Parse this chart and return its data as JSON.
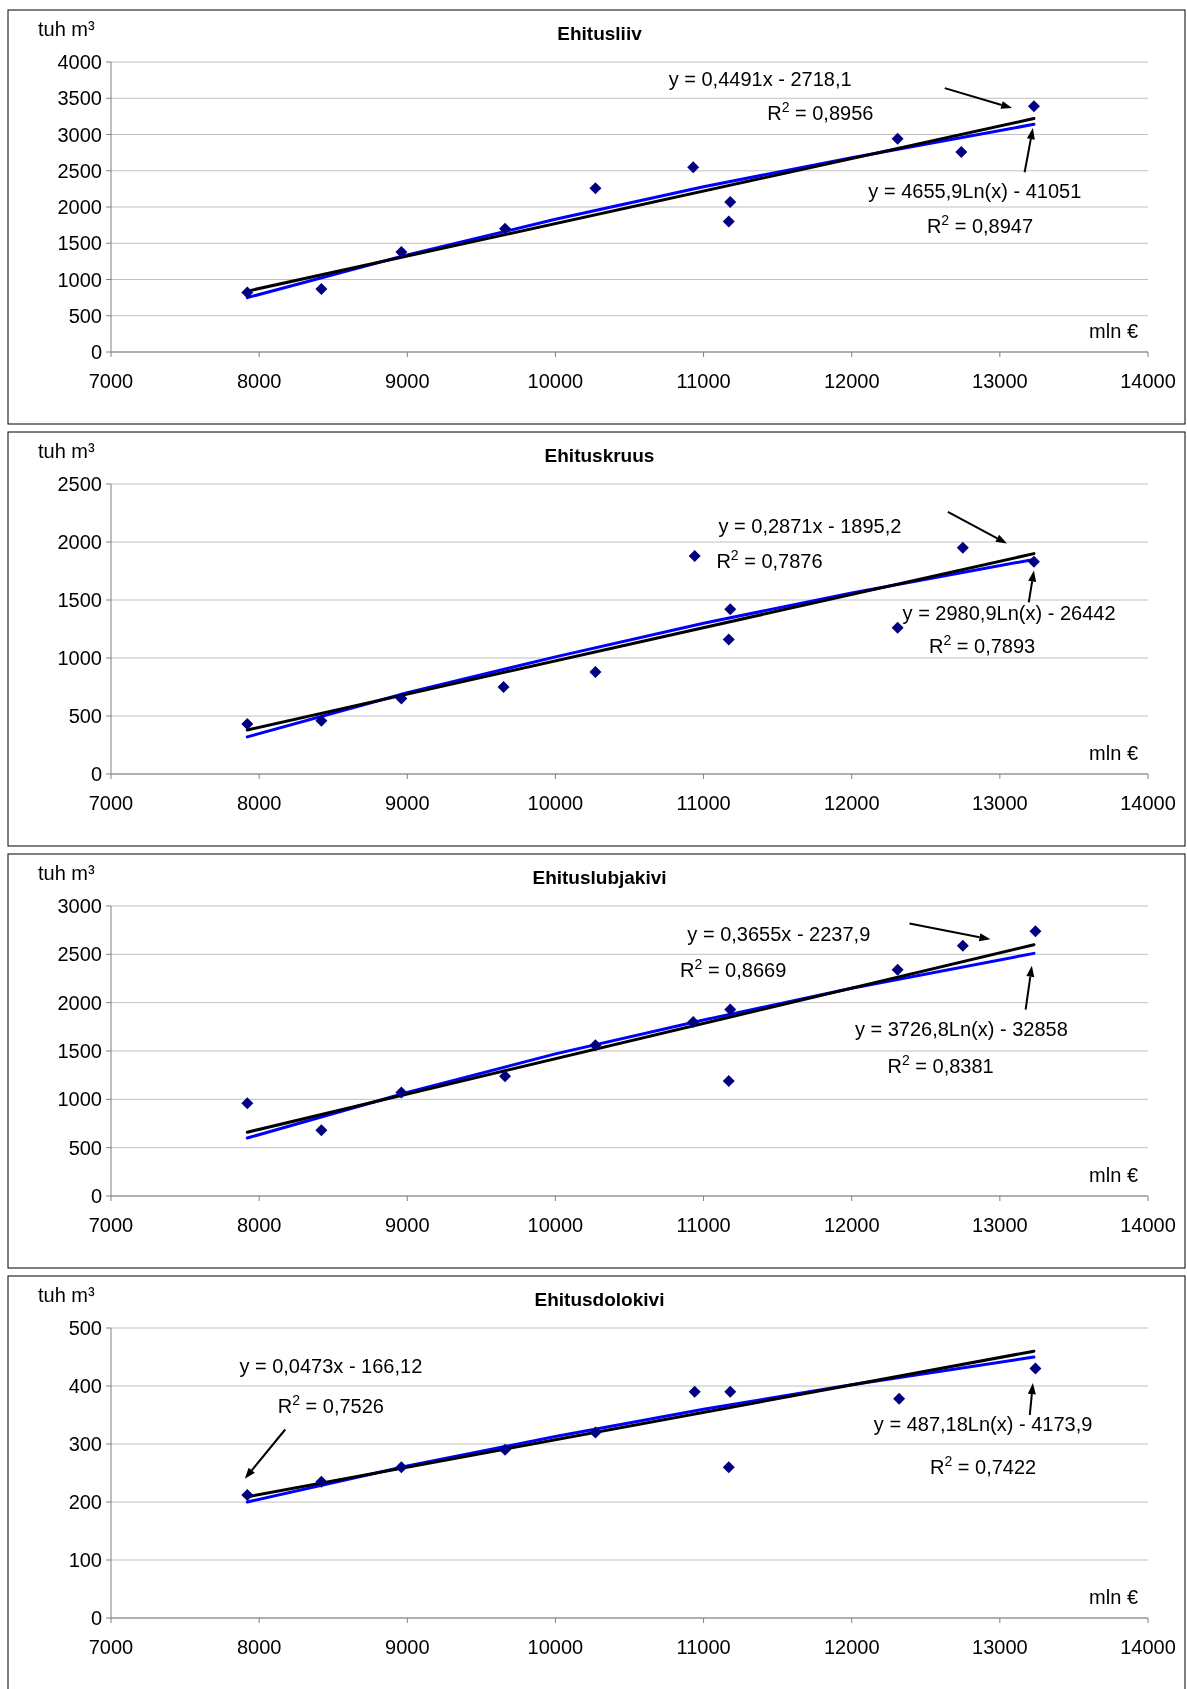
{
  "chart_data": [
    {
      "type": "scatter",
      "title": "Ehitusliiv",
      "ylabel": "tuh m³",
      "xlabel": "mln €",
      "xlim": [
        7000,
        14000
      ],
      "xticks": [
        7000,
        8000,
        9000,
        10000,
        11000,
        12000,
        13000,
        14000
      ],
      "ylim": [
        0,
        4000
      ],
      "yticks": [
        0,
        500,
        1000,
        1500,
        2000,
        2500,
        3000,
        3500,
        4000
      ],
      "grid": "y",
      "marker": "diamond",
      "annotations": [
        "y = 0,4491x - 2718,1",
        "R$^{2}$ = 0,8956",
        "y = 4655,9Ln(x) - 41051",
        "R$^{2}$ = 0,8947"
      ],
      "series": [
        {
          "type": "line",
          "color": "#0000ff",
          "marker": "none",
          "x": [
            7920,
            9000,
            10000,
            11000,
            12000,
            13230
          ],
          "values": [
            750,
            1340,
            1830,
            2280,
            2680,
            3140
          ]
        },
        {
          "type": "line",
          "color": "#000000",
          "marker": "none",
          "x": [
            7920,
            13230
          ],
          "values": [
            840,
            3220
          ]
        },
        {
          "color": "#000080",
          "x": [
            7920,
            8420,
            8960,
            9660,
            10270,
            10930,
            11170,
            11180,
            12310,
            12740,
            13230
          ],
          "values": [
            820,
            870,
            1380,
            1700,
            2260,
            2550,
            1800,
            2070,
            2940,
            2760,
            3390
          ]
        }
      ]
    },
    {
      "type": "scatter",
      "title": "Ehituskruus",
      "ylabel": "tuh m³",
      "xlabel": "mln €",
      "xlim": [
        7000,
        14000
      ],
      "xticks": [
        7000,
        8000,
        9000,
        10000,
        11000,
        12000,
        13000,
        14000
      ],
      "ylim": [
        0,
        2500
      ],
      "yticks": [
        0,
        500,
        1000,
        1500,
        2000,
        2500
      ],
      "grid": "y",
      "marker": "diamond",
      "annotations": [
        "y = 0,2871x - 1895,2",
        "R$^{2}$ = 0,7876",
        "y = 2980,9Ln(x) - 26442",
        "R$^{2}$ = 0,7893"
      ],
      "series": [
        {
          "type": "line",
          "color": "#0000ff",
          "marker": "none",
          "x": [
            7920,
            9000,
            10000,
            11000,
            12000,
            13230
          ],
          "values": [
            320,
            700,
            1010,
            1300,
            1560,
            1850
          ]
        },
        {
          "type": "line",
          "color": "#000000",
          "marker": "none",
          "x": [
            7920,
            13230
          ],
          "values": [
            380,
            1900
          ]
        },
        {
          "color": "#000080",
          "x": [
            7920,
            8420,
            8960,
            9650,
            10270,
            10940,
            11170,
            11180,
            12310,
            12750,
            13230
          ],
          "values": [
            430,
            460,
            650,
            750,
            880,
            1880,
            1160,
            1420,
            1260,
            1950,
            1830
          ]
        }
      ]
    },
    {
      "type": "scatter",
      "title": "Ehituslubjakivi",
      "ylabel": "tuh m³",
      "xlabel": "mln €",
      "xlim": [
        7000,
        14000
      ],
      "xticks": [
        7000,
        8000,
        9000,
        10000,
        11000,
        12000,
        13000,
        14000
      ],
      "ylim": [
        0,
        3000
      ],
      "yticks": [
        0,
        500,
        1000,
        1500,
        2000,
        2500,
        3000
      ],
      "grid": "y",
      "marker": "diamond",
      "annotations": [
        "y = 0,3655x - 2237,9",
        "R$^{2}$ = 0,8669",
        "y = 3726,8Ln(x) - 32858",
        "R$^{2}$ = 0,8381"
      ],
      "series": [
        {
          "type": "line",
          "color": "#0000ff",
          "marker": "none",
          "x": [
            7920,
            9000,
            10000,
            11000,
            12000,
            13230
          ],
          "values": [
            600,
            1070,
            1470,
            1820,
            2150,
            2510
          ]
        },
        {
          "type": "line",
          "color": "#000000",
          "marker": "none",
          "x": [
            7920,
            13230
          ],
          "values": [
            660,
            2600
          ]
        },
        {
          "color": "#000080",
          "x": [
            7920,
            8420,
            8960,
            9660,
            10270,
            10930,
            11170,
            11180,
            12310,
            12750,
            13240
          ],
          "values": [
            960,
            680,
            1070,
            1240,
            1560,
            1800,
            1190,
            1930,
            2340,
            2590,
            2740
          ]
        }
      ]
    },
    {
      "type": "scatter",
      "title": "Ehitusdolokivi",
      "ylabel": "tuh m³",
      "xlabel": "mln €",
      "xlim": [
        7000,
        14000
      ],
      "xticks": [
        7000,
        8000,
        9000,
        10000,
        11000,
        12000,
        13000,
        14000
      ],
      "ylim": [
        0,
        500
      ],
      "yticks": [
        0,
        100,
        200,
        300,
        400,
        500
      ],
      "grid": "y",
      "marker": "diamond",
      "annotations": [
        "y = 0,0473x - 166,12",
        "R$^{2}$ = 0,7526",
        "y = 487,18Ln(x) - 4173,9",
        "R$^{2}$ = 0,7422"
      ],
      "series": [
        {
          "type": "line",
          "color": "#0000ff",
          "marker": "none",
          "x": [
            7920,
            9000,
            10000,
            11000,
            12000,
            13230
          ],
          "values": [
            200,
            262,
            313,
            360,
            402,
            450
          ]
        },
        {
          "type": "line",
          "color": "#000000",
          "marker": "none",
          "x": [
            7920,
            13230
          ],
          "values": [
            209,
            460
          ]
        },
        {
          "color": "#000080",
          "x": [
            7920,
            8420,
            8960,
            9660,
            10270,
            10940,
            11170,
            11180,
            12320,
            13240
          ],
          "values": [
            212,
            235,
            260,
            290,
            320,
            390,
            260,
            390,
            378,
            430
          ]
        }
      ]
    }
  ]
}
